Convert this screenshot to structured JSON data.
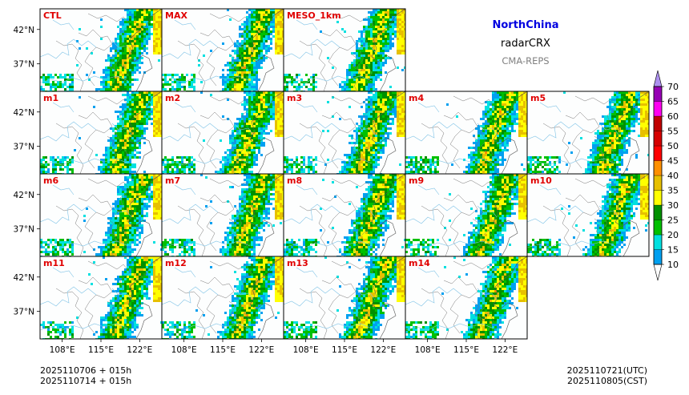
{
  "header": {
    "region": "NorthChina",
    "variable": "radarCRX",
    "system": "CMA-REPS",
    "region_color": "#0000e0",
    "system_color": "#808080"
  },
  "footer": {
    "init_utc": "2025110706  +  015h",
    "init_cst": "2025110714  +  015h",
    "valid_utc": "2025110721(UTC)",
    "valid_cst": "2025110805(CST)"
  },
  "chart_data": {
    "type": "heatmap",
    "title": "NorthChina radarCRX CMA-REPS",
    "grid": [
      [
        "CTL",
        "MAX",
        "MESO_1km"
      ],
      [
        "m1",
        "m2",
        "m3",
        "m4",
        "m5"
      ],
      [
        "m6",
        "m7",
        "m8",
        "m9",
        "m10"
      ],
      [
        "m11",
        "m12",
        "m13",
        "m14"
      ]
    ],
    "y_ticks": [
      "42°N",
      "37°N"
    ],
    "x_ticks": [
      "108°E",
      "115°E",
      "122°E"
    ],
    "lon_range": [
      104,
      126
    ],
    "lat_range": [
      33,
      45
    ],
    "colorbar": {
      "levels": [
        10,
        15,
        20,
        25,
        30,
        35,
        40,
        45,
        50,
        55,
        60,
        65,
        70
      ],
      "colors": [
        "#00a0f0",
        "#00e0e0",
        "#00c000",
        "#009000",
        "#ffff00",
        "#e7c000",
        "#ff9000",
        "#ff0000",
        "#d60000",
        "#c00000",
        "#ff00f0",
        "#9600b4",
        "#ad90f0"
      ],
      "extend": "both"
    }
  }
}
